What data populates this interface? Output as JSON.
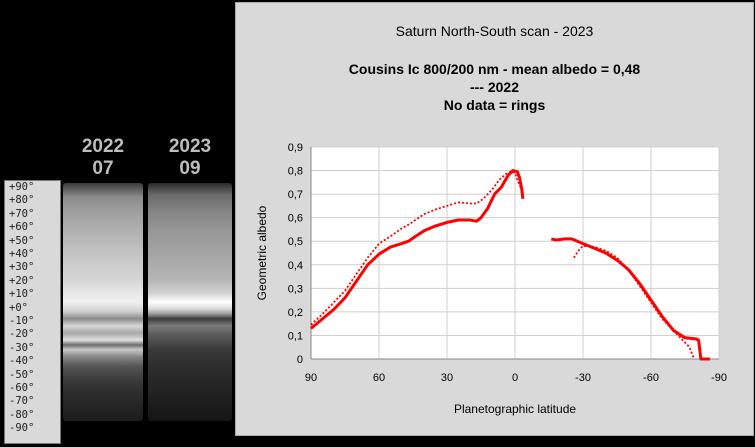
{
  "left_panel": {
    "strips": [
      {
        "year": "2022",
        "month": "07"
      },
      {
        "year": "2023",
        "month": "09"
      }
    ],
    "latitude_scale": [
      "+90°",
      "+80°",
      "+70°",
      "+60°",
      "+50°",
      "+40°",
      "+30°",
      "+20°",
      "+10°",
      "+0°",
      "-10°",
      "-20°",
      "-30°",
      "-40°",
      "-50°",
      "-60°",
      "-70°",
      "-80°",
      "-90°"
    ]
  },
  "chart_data": {
    "type": "line",
    "title": "Saturn North-South scan - 2023",
    "subtitle_lines": [
      "Cousins Ic 800/200 nm - mean albedo = 0,48",
      "--- 2022",
      "No data = rings"
    ],
    "xlabel": "Planetographic latitude",
    "ylabel": "Geometric albedo",
    "xlim": [
      90,
      -90
    ],
    "ylim": [
      0,
      0.9
    ],
    "x_ticks": [
      90,
      60,
      30,
      0,
      -30,
      -60,
      -90
    ],
    "x_tick_labels": [
      "90",
      "60",
      "30",
      "0",
      "-30",
      "-60",
      "-90"
    ],
    "y_ticks": [
      0,
      0.1,
      0.2,
      0.3,
      0.4,
      0.5,
      0.6,
      0.7,
      0.8,
      0.9
    ],
    "y_tick_labels": [
      "0",
      "0,1",
      "0,2",
      "0,3",
      "0,4",
      "0,5",
      "0,6",
      "0,7",
      "0,8",
      "0,9"
    ],
    "grid": true,
    "series_color": "#ff0000",
    "series": [
      {
        "style": "solid",
        "segments": [
          [
            [
              90,
              0.13
            ],
            [
              85,
              0.17
            ],
            [
              80,
              0.21
            ],
            [
              75,
              0.26
            ],
            [
              70,
              0.33
            ],
            [
              65,
              0.4
            ],
            [
              60,
              0.445
            ],
            [
              55,
              0.475
            ],
            [
              50,
              0.49
            ],
            [
              47,
              0.5
            ],
            [
              44,
              0.52
            ],
            [
              40,
              0.545
            ],
            [
              35,
              0.565
            ],
            [
              30,
              0.58
            ],
            [
              25,
              0.59
            ],
            [
              20,
              0.59
            ],
            [
              17,
              0.585
            ],
            [
              15,
              0.6
            ],
            [
              12,
              0.64
            ],
            [
              9,
              0.7
            ],
            [
              6,
              0.73
            ],
            [
              3,
              0.78
            ],
            [
              1,
              0.8
            ],
            [
              -1,
              0.795
            ],
            [
              -2,
              0.77
            ],
            [
              -3,
              0.72
            ],
            [
              -3.5,
              0.68
            ]
          ],
          [
            [
              -16,
              0.51
            ],
            [
              -18,
              0.505
            ],
            [
              -22,
              0.51
            ],
            [
              -25,
              0.51
            ],
            [
              -30,
              0.49
            ],
            [
              -35,
              0.47
            ],
            [
              -40,
              0.45
            ],
            [
              -45,
              0.42
            ],
            [
              -50,
              0.38
            ],
            [
              -55,
              0.32
            ],
            [
              -60,
              0.25
            ],
            [
              -65,
              0.18
            ],
            [
              -70,
              0.12
            ],
            [
              -75,
              0.09
            ],
            [
              -80,
              0.085
            ],
            [
              -81,
              0.08
            ],
            [
              -82,
              0.0
            ],
            [
              -86,
              0.0
            ]
          ]
        ]
      },
      {
        "style": "dotted",
        "segments": [
          [
            [
              90,
              0.145
            ],
            [
              85,
              0.19
            ],
            [
              80,
              0.24
            ],
            [
              75,
              0.29
            ],
            [
              70,
              0.36
            ],
            [
              65,
              0.43
            ],
            [
              60,
              0.49
            ],
            [
              55,
              0.52
            ],
            [
              50,
              0.555
            ],
            [
              47,
              0.57
            ],
            [
              44,
              0.59
            ],
            [
              40,
              0.615
            ],
            [
              35,
              0.635
            ],
            [
              30,
              0.65
            ],
            [
              25,
              0.665
            ],
            [
              20,
              0.66
            ],
            [
              17,
              0.66
            ],
            [
              14,
              0.68
            ],
            [
              10,
              0.72
            ],
            [
              7,
              0.76
            ],
            [
              4,
              0.785
            ],
            [
              2,
              0.795
            ],
            [
              0,
              0.79
            ],
            [
              -1,
              0.76
            ],
            [
              -2,
              0.74
            ],
            [
              -3.5,
              0.7
            ]
          ],
          [
            [
              -26,
              0.43
            ],
            [
              -28,
              0.46
            ],
            [
              -30,
              0.48
            ],
            [
              -35,
              0.475
            ],
            [
              -40,
              0.46
            ],
            [
              -45,
              0.43
            ],
            [
              -50,
              0.38
            ],
            [
              -55,
              0.31
            ],
            [
              -60,
              0.24
            ],
            [
              -65,
              0.17
            ],
            [
              -70,
              0.12
            ],
            [
              -74,
              0.08
            ],
            [
              -77,
              0.05
            ],
            [
              -79,
              0.0
            ]
          ]
        ]
      }
    ]
  }
}
